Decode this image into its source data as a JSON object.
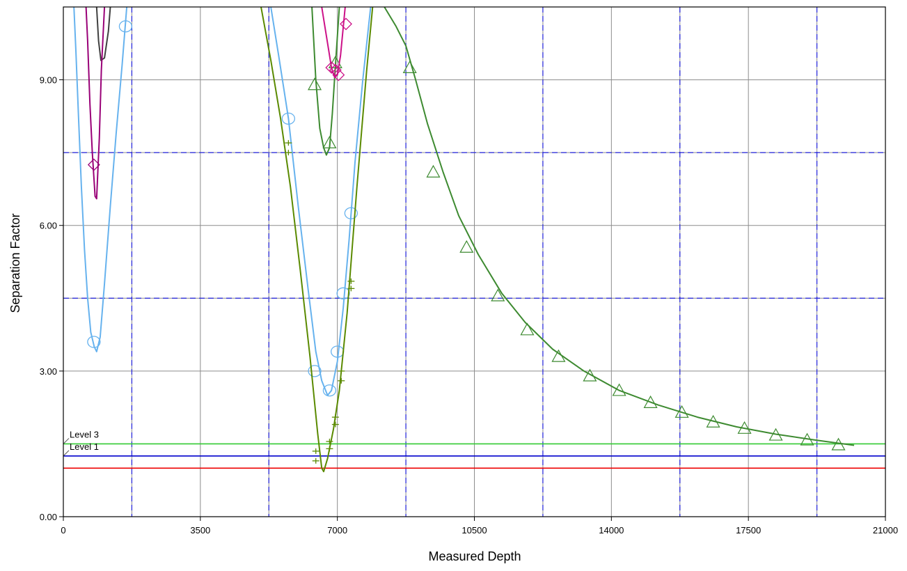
{
  "chart_data": {
    "type": "line",
    "xlabel": "Measured Depth",
    "ylabel": "Separation Factor",
    "xlim": [
      0,
      21000
    ],
    "ylim": [
      0,
      10.5
    ],
    "x_ticks": [
      0,
      3500,
      7000,
      10500,
      14000,
      17500,
      21000
    ],
    "x_tick_labels": [
      "0",
      "3500",
      "7000",
      "10500",
      "14000",
      "17500",
      "21000"
    ],
    "y_ticks": [
      0,
      3,
      6,
      9
    ],
    "y_tick_labels": [
      "0.00",
      "3.00",
      "6.00",
      "9.00"
    ],
    "grid": true,
    "dashed_vlines_x": [
      1750,
      5250,
      8750,
      12250,
      15750,
      19250
    ],
    "dashed_hlines_y": [
      4.5,
      7.5
    ],
    "levels": [
      {
        "label": "Level 3",
        "y": 1.5,
        "color": "#33cc33"
      },
      {
        "label": "Level 1",
        "y": 1.25,
        "color": "#0000cc"
      },
      {
        "label": "",
        "y": 1.0,
        "color": "#ee0000"
      }
    ],
    "series": [
      {
        "color": "#404040",
        "marker": "none",
        "x": [
          850,
          900,
          960,
          1050,
          1150,
          1200
        ],
        "y": [
          10.5,
          9.8,
          9.4,
          9.45,
          10.0,
          10.5
        ]
      },
      {
        "color": "#990077",
        "marker": "none",
        "x": [
          580,
          620,
          680,
          740,
          810,
          850,
          920,
          970,
          1050
        ],
        "y": [
          10.5,
          9.8,
          8.5,
          7.5,
          6.6,
          6.55,
          7.8,
          9.2,
          10.5
        ]
      },
      {
        "color": "#990077",
        "marker": "diamond",
        "points": [
          [
            780,
            7.25
          ]
        ]
      },
      {
        "color": "#66b2ee",
        "marker": "none",
        "x": [
          270,
          320,
          390,
          460,
          540,
          620,
          700,
          790,
          850,
          940,
          1050,
          1200,
          1350,
          1500,
          1620
        ],
        "y": [
          10.5,
          9.6,
          8.2,
          6.8,
          5.5,
          4.5,
          3.8,
          3.5,
          3.4,
          3.7,
          4.8,
          6.4,
          7.9,
          9.3,
          10.5
        ]
      },
      {
        "color": "#66b2ee",
        "marker": "circle",
        "points": [
          [
            780,
            3.6
          ],
          [
            1590,
            10.1
          ]
        ]
      },
      {
        "color": "#66b2ee",
        "marker": "none",
        "x": [
          5300,
          5500,
          5750,
          6000,
          6250,
          6450,
          6600,
          6750,
          6850,
          7000,
          7150,
          7300,
          7450,
          7650,
          7850
        ],
        "y": [
          10.5,
          9.5,
          8.2,
          6.4,
          4.7,
          3.4,
          2.8,
          2.5,
          2.6,
          3.2,
          4.3,
          5.7,
          7.3,
          9.0,
          10.5
        ]
      },
      {
        "color": "#66b2ee",
        "marker": "circle",
        "points": [
          [
            5750,
            8.2
          ],
          [
            6420,
            3.0
          ],
          [
            6800,
            2.6
          ],
          [
            7000,
            3.4
          ],
          [
            7150,
            4.6
          ],
          [
            7350,
            6.25
          ]
        ]
      },
      {
        "color": "#5a8a00",
        "marker": "none",
        "x": [
          5050,
          5300,
          5550,
          5800,
          6050,
          6300,
          6500,
          6600,
          6650,
          6750,
          6900,
          7050,
          7250,
          7500,
          7750,
          7900
        ],
        "y": [
          10.5,
          9.4,
          8.2,
          6.8,
          5.1,
          3.3,
          1.7,
          1.0,
          0.93,
          1.2,
          1.8,
          2.6,
          4.2,
          6.8,
          9.2,
          10.5
        ]
      },
      {
        "color": "#5a8a00",
        "marker": "plus",
        "points": [
          [
            5750,
            7.7
          ],
          [
            5750,
            7.5
          ],
          [
            6450,
            1.35
          ],
          [
            6450,
            1.15
          ],
          [
            6800,
            1.4
          ],
          [
            6800,
            1.55
          ],
          [
            6950,
            1.9
          ],
          [
            6950,
            2.05
          ],
          [
            7100,
            2.8
          ],
          [
            7100,
            3.0
          ],
          [
            7350,
            4.7
          ],
          [
            7350,
            4.85
          ]
        ]
      },
      {
        "color": "#3d8a30",
        "marker": "none",
        "x": [
          6350,
          6450,
          6550,
          6650,
          6720,
          6800,
          6870,
          6950,
          7050
        ],
        "y": [
          10.5,
          9.0,
          8.0,
          7.6,
          7.45,
          7.6,
          8.3,
          9.3,
          10.5
        ]
      },
      {
        "color": "#3d8a30",
        "marker": "triangle",
        "points": [
          [
            6420,
            8.9
          ],
          [
            6800,
            7.7
          ],
          [
            6950,
            9.35
          ]
        ]
      },
      {
        "color": "#cc1188",
        "marker": "none",
        "x": [
          6600,
          6700,
          6780,
          6850,
          6930,
          7000,
          7080,
          7200
        ],
        "y": [
          10.5,
          10.0,
          9.6,
          9.25,
          9.05,
          9.1,
          9.5,
          10.5
        ]
      },
      {
        "color": "#cc1188",
        "marker": "diamond",
        "points": [
          [
            6850,
            9.25
          ],
          [
            6950,
            9.2
          ],
          [
            7030,
            9.1
          ],
          [
            7220,
            10.15
          ]
        ]
      },
      {
        "color": "#3d8a30",
        "marker": "none",
        "x": [
          8200,
          8500,
          8750,
          9000,
          9300,
          9700,
          10100,
          10600,
          11200,
          11800,
          12500,
          13300,
          14200,
          15200,
          16200,
          17200,
          18200,
          19200,
          20200
        ],
        "y": [
          10.5,
          10.1,
          9.7,
          9.0,
          8.1,
          7.1,
          6.2,
          5.4,
          4.6,
          4.0,
          3.45,
          3.0,
          2.6,
          2.3,
          2.05,
          1.85,
          1.7,
          1.58,
          1.47
        ]
      },
      {
        "color": "#3d8a30",
        "marker": "triangle",
        "points": [
          [
            8850,
            9.25
          ],
          [
            9450,
            7.1
          ],
          [
            10300,
            5.55
          ],
          [
            11100,
            4.55
          ],
          [
            11850,
            3.85
          ],
          [
            12650,
            3.3
          ],
          [
            13450,
            2.9
          ],
          [
            14200,
            2.6
          ],
          [
            15000,
            2.35
          ],
          [
            15800,
            2.15
          ],
          [
            16600,
            1.95
          ],
          [
            17400,
            1.82
          ],
          [
            18200,
            1.68
          ],
          [
            19000,
            1.58
          ],
          [
            19800,
            1.48
          ]
        ]
      }
    ]
  }
}
